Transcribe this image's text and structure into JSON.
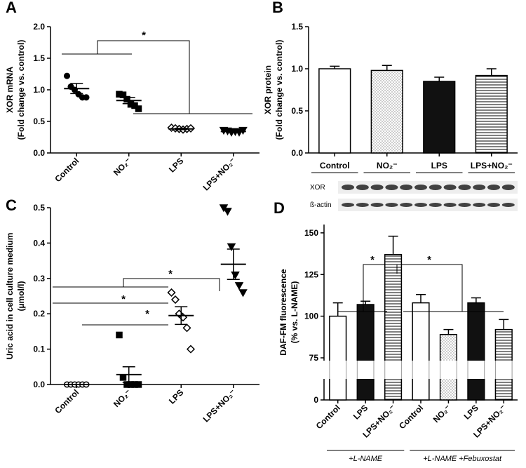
{
  "chart_data": [
    {
      "panel": "A",
      "type": "dot",
      "ylabel": [
        "XOR mRNA",
        "(Fold change vs. control)"
      ],
      "categories": [
        "Control",
        "NO₂⁻",
        "LPS",
        "LPS+NO₂⁻"
      ],
      "markers": [
        "circle",
        "square",
        "diamond-open",
        "triangle-down"
      ],
      "points": [
        [
          1.22,
          1.05,
          1.0,
          0.93,
          0.88,
          0.88
        ],
        [
          0.93,
          0.92,
          0.85,
          0.77,
          0.75,
          0.7
        ],
        [
          0.4,
          0.39,
          0.38,
          0.37,
          0.38,
          0.39
        ],
        [
          0.36,
          0.35,
          0.33,
          0.34,
          0.33,
          0.36
        ]
      ],
      "means": [
        1.02,
        0.83,
        0.38,
        0.34
      ],
      "errors": [
        0.08,
        0.05,
        0.01,
        0.01
      ],
      "ylim": [
        0,
        2
      ],
      "yticks": [
        {
          "value": 0,
          "label": "0.0"
        },
        0.5,
        {
          "value": 1,
          "label": "1.0"
        },
        1.5,
        {
          "value": 2,
          "label": "2.0"
        }
      ],
      "annotations": [
        "*"
      ]
    },
    {
      "panel": "B",
      "type": "bar",
      "ylabel": [
        "XOR protein",
        "(Fold change vs. control)"
      ],
      "categories": [
        "Control",
        "NO₂⁻",
        "LPS",
        "LPS+NO₂⁻"
      ],
      "fills": [
        "white",
        "dots",
        "black",
        "stripes"
      ],
      "values": [
        1.0,
        0.98,
        0.85,
        0.92
      ],
      "errors": [
        0.03,
        0.06,
        0.05,
        0.08
      ],
      "ylim": [
        0,
        1.5
      ],
      "yticks": [
        {
          "value": 0,
          "label": "0.0"
        },
        0.5,
        {
          "value": 1,
          "label": "1.0"
        },
        1.5
      ],
      "blot_labels": [
        "XOR",
        "ß-actin"
      ]
    },
    {
      "panel": "C",
      "type": "dot",
      "ylabel": [
        "Uric acid in cell culture medium",
        "(µmol/l)"
      ],
      "categories": [
        "Control",
        "NO₂⁻",
        "LPS",
        "LPS+NO₂⁻"
      ],
      "markers": [
        "circle-open",
        "square",
        "diamond-open",
        "triangle-down"
      ],
      "points": [
        [
          0,
          0,
          0,
          0,
          0,
          0
        ],
        [
          0.14,
          0.02,
          0,
          0,
          0,
          0
        ],
        [
          0.26,
          0.24,
          0.2,
          0.19,
          0.16,
          0.1
        ],
        [
          0.5,
          0.49,
          0.39,
          0.31,
          0.28,
          0.26
        ]
      ],
      "means": [
        0,
        0.028,
        0.195,
        0.34
      ],
      "errors": [
        0,
        0.022,
        0.025,
        0.043
      ],
      "ylim": [
        0,
        0.5
      ],
      "yticks": [
        {
          "value": 0,
          "label": "0.0"
        },
        0.1,
        0.2,
        0.3,
        0.4,
        0.5
      ],
      "annotations": [
        "*",
        "*",
        "*"
      ]
    },
    {
      "panel": "D",
      "type": "bar",
      "broken_axis": true,
      "ylabel": [
        "DAF-FM fluorescence",
        "(% vs. L-NAME)"
      ],
      "categories": [
        "Control",
        "LPS",
        "LPS+NO₂⁻",
        "Control",
        "NO₂⁻",
        "LPS",
        "LPS+NO₂⁻"
      ],
      "fills": [
        "white",
        "black",
        "stripes",
        "white",
        "dots",
        "black",
        "stripes"
      ],
      "values": [
        100,
        107,
        137,
        108,
        89,
        108,
        92
      ],
      "errors": [
        8,
        2,
        11,
        5,
        3,
        3,
        6
      ],
      "ylim": [
        0,
        155
      ],
      "yticks": [
        0,
        75,
        100,
        125,
        150
      ],
      "groups": [
        "+L-NAME",
        "+L-NAME +Febuxostat"
      ],
      "annotations": [
        "*",
        "*"
      ]
    }
  ]
}
